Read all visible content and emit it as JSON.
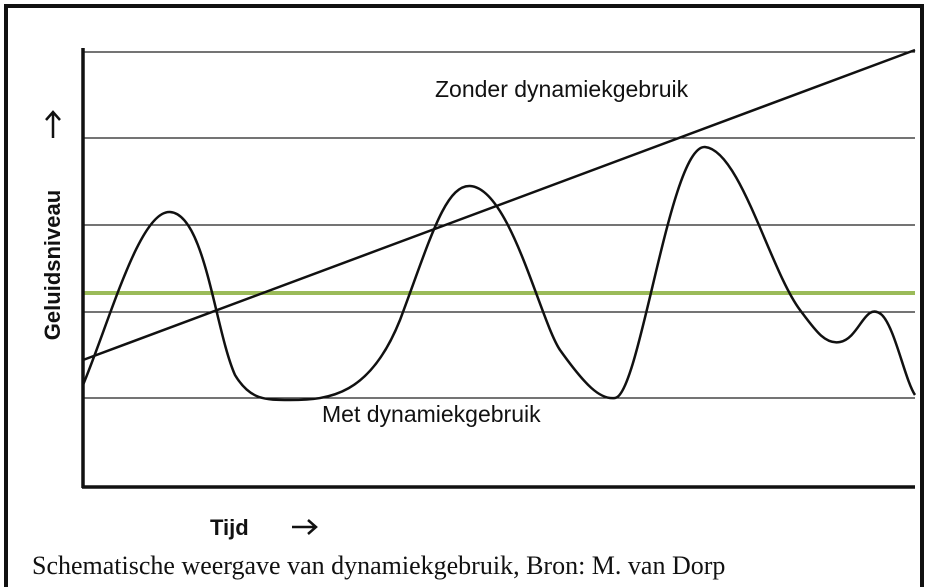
{
  "diagram": {
    "y_axis_label": "Geluidsniveau",
    "x_axis_label": "Tijd",
    "line_labels": [
      "Zonder dynamiekgebruik",
      "Met dynamiekgebruik"
    ],
    "caption": "Schematische weergave van dynamiekgebruik, Bron: M. van Dorp"
  }
}
